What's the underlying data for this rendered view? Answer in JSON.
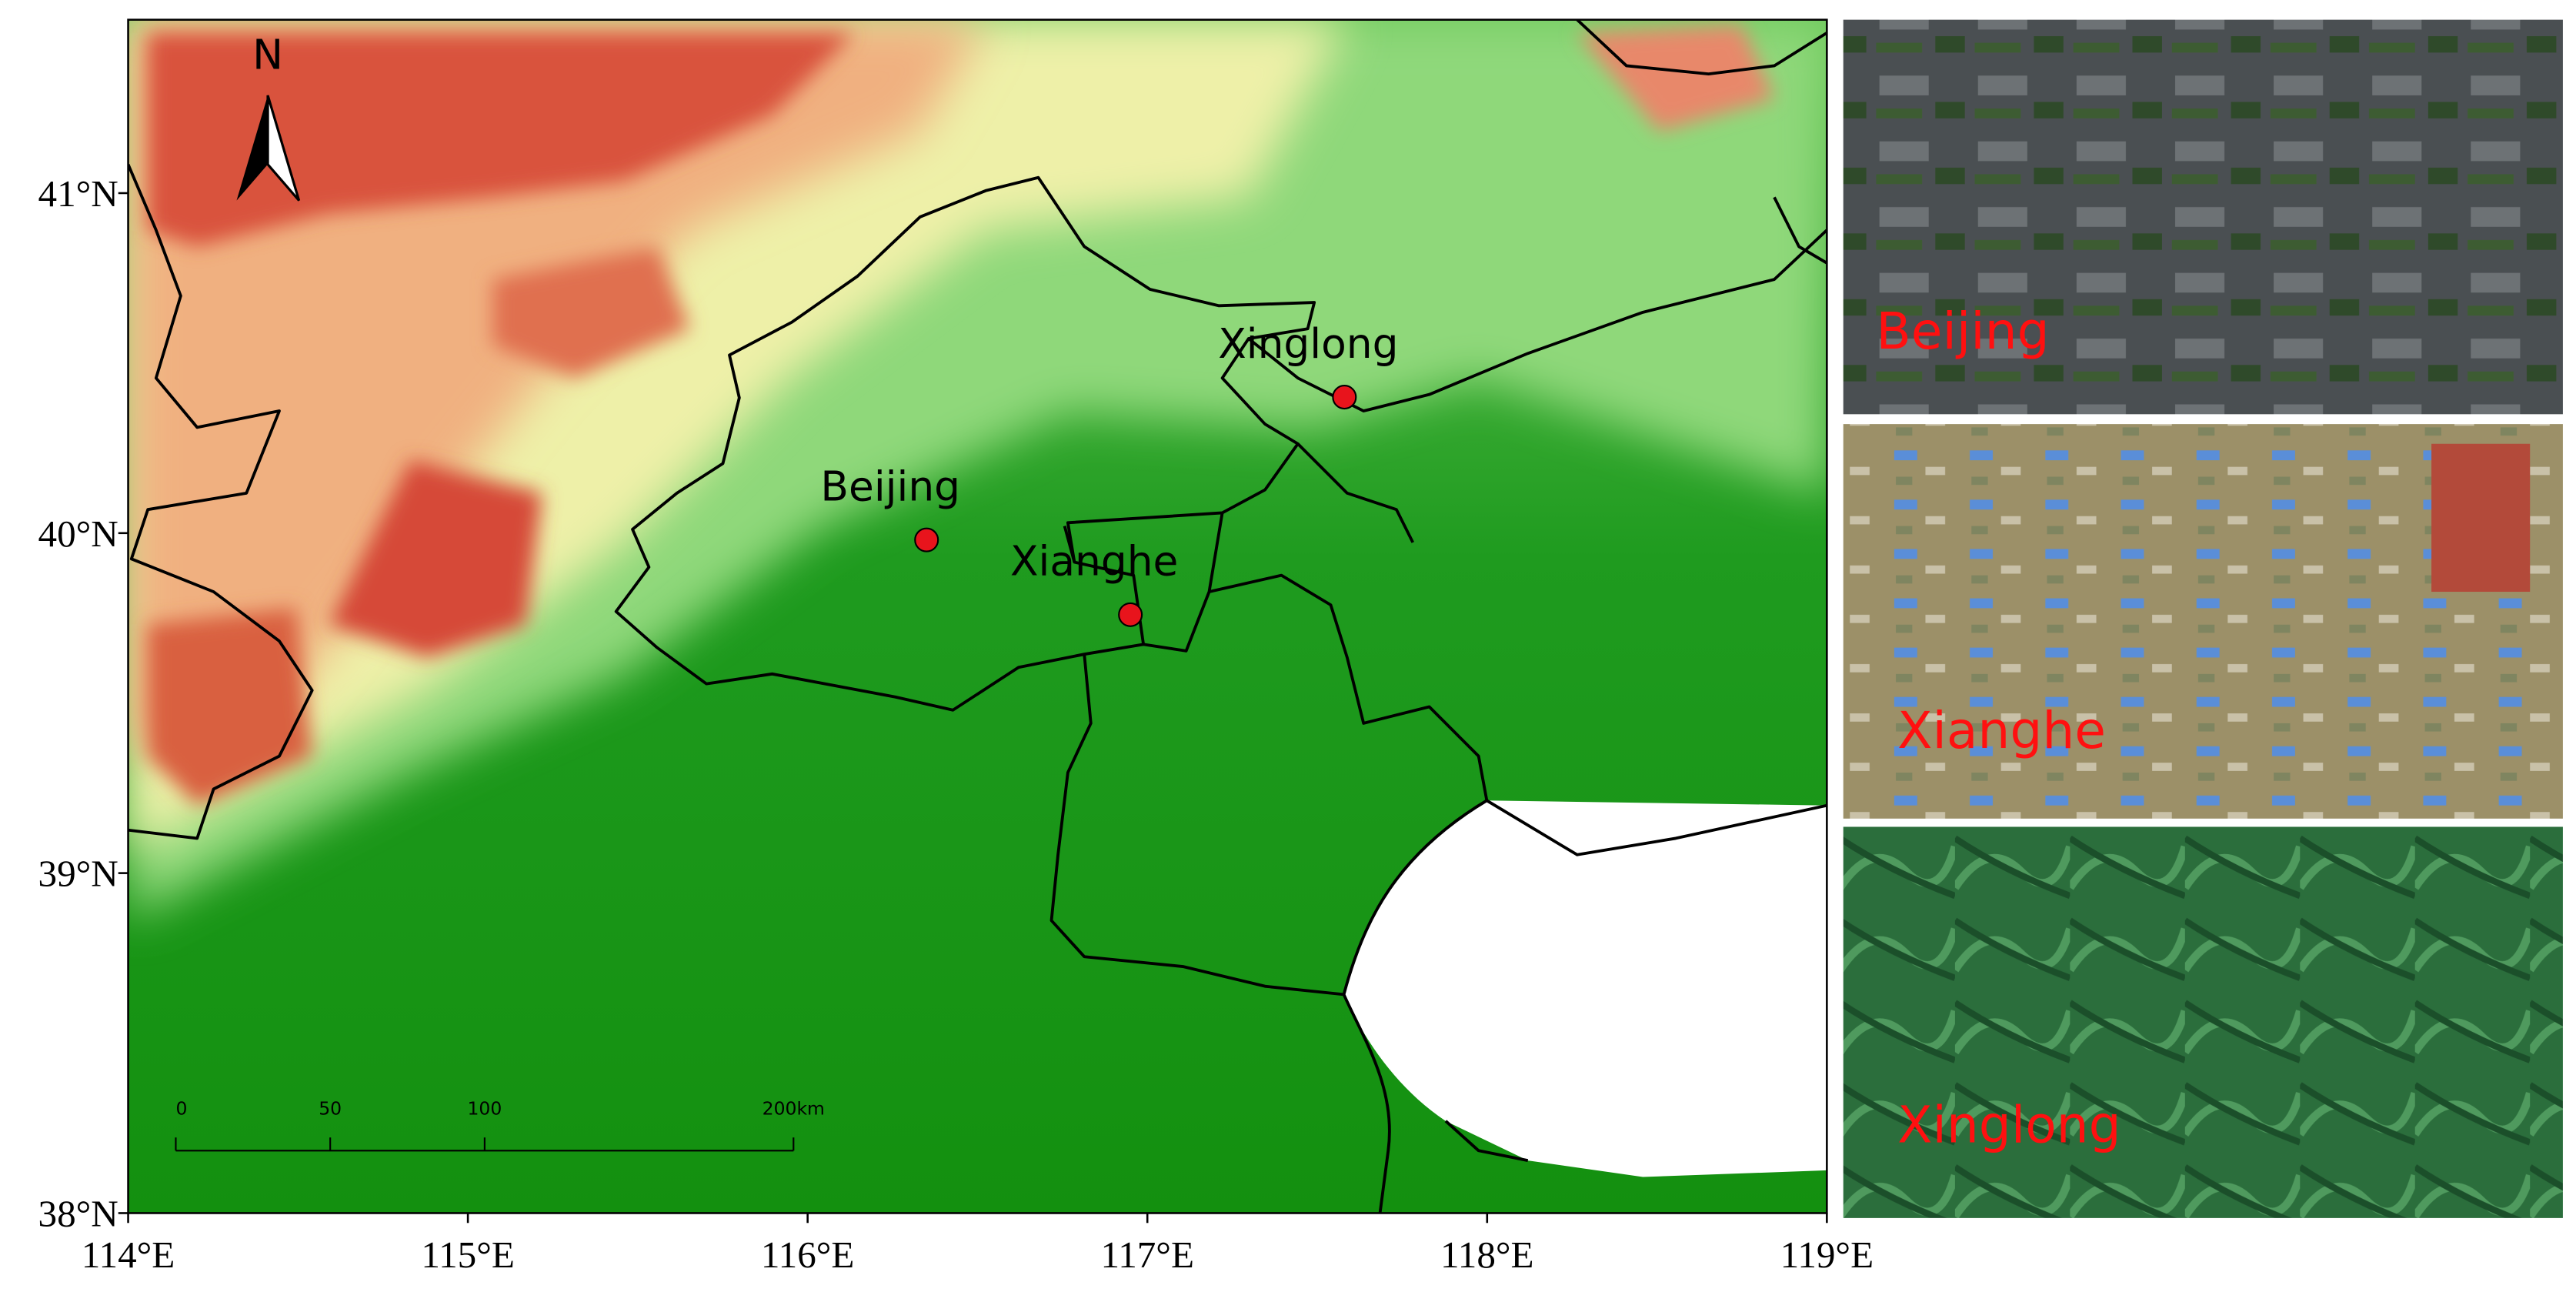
{
  "map": {
    "xlim": [
      114,
      119
    ],
    "ylim": [
      38,
      41.51
    ],
    "lon_ticks": [
      {
        "value": 114,
        "label": "114°E"
      },
      {
        "value": 115,
        "label": "115°E"
      },
      {
        "value": 116,
        "label": "116°E"
      },
      {
        "value": 117,
        "label": "117°E"
      },
      {
        "value": 118,
        "label": "118°E"
      },
      {
        "value": 119,
        "label": "119°E"
      }
    ],
    "lat_ticks": [
      {
        "value": 38,
        "label": "38°N"
      },
      {
        "value": 39,
        "label": "39°N"
      },
      {
        "value": 40,
        "label": "40°N"
      },
      {
        "value": 41,
        "label": "41°N"
      }
    ],
    "north_label": "N",
    "sites": [
      {
        "name": "Beijing",
        "lon": 116.35,
        "lat": 39.98,
        "color": "#e8141c"
      },
      {
        "name": "Xianghe",
        "lon": 116.95,
        "lat": 39.76,
        "color": "#e8141c"
      },
      {
        "name": "Xinglong",
        "lon": 117.58,
        "lat": 40.4,
        "color": "#e8141c"
      }
    ],
    "scale_bar": {
      "ticks": [
        0,
        50,
        100,
        {
          "value": 200,
          "label": "200km"
        }
      ]
    }
  },
  "photos": [
    {
      "label": "Beijing"
    },
    {
      "label": "Xianghe"
    },
    {
      "label": "Xinglong"
    }
  ]
}
